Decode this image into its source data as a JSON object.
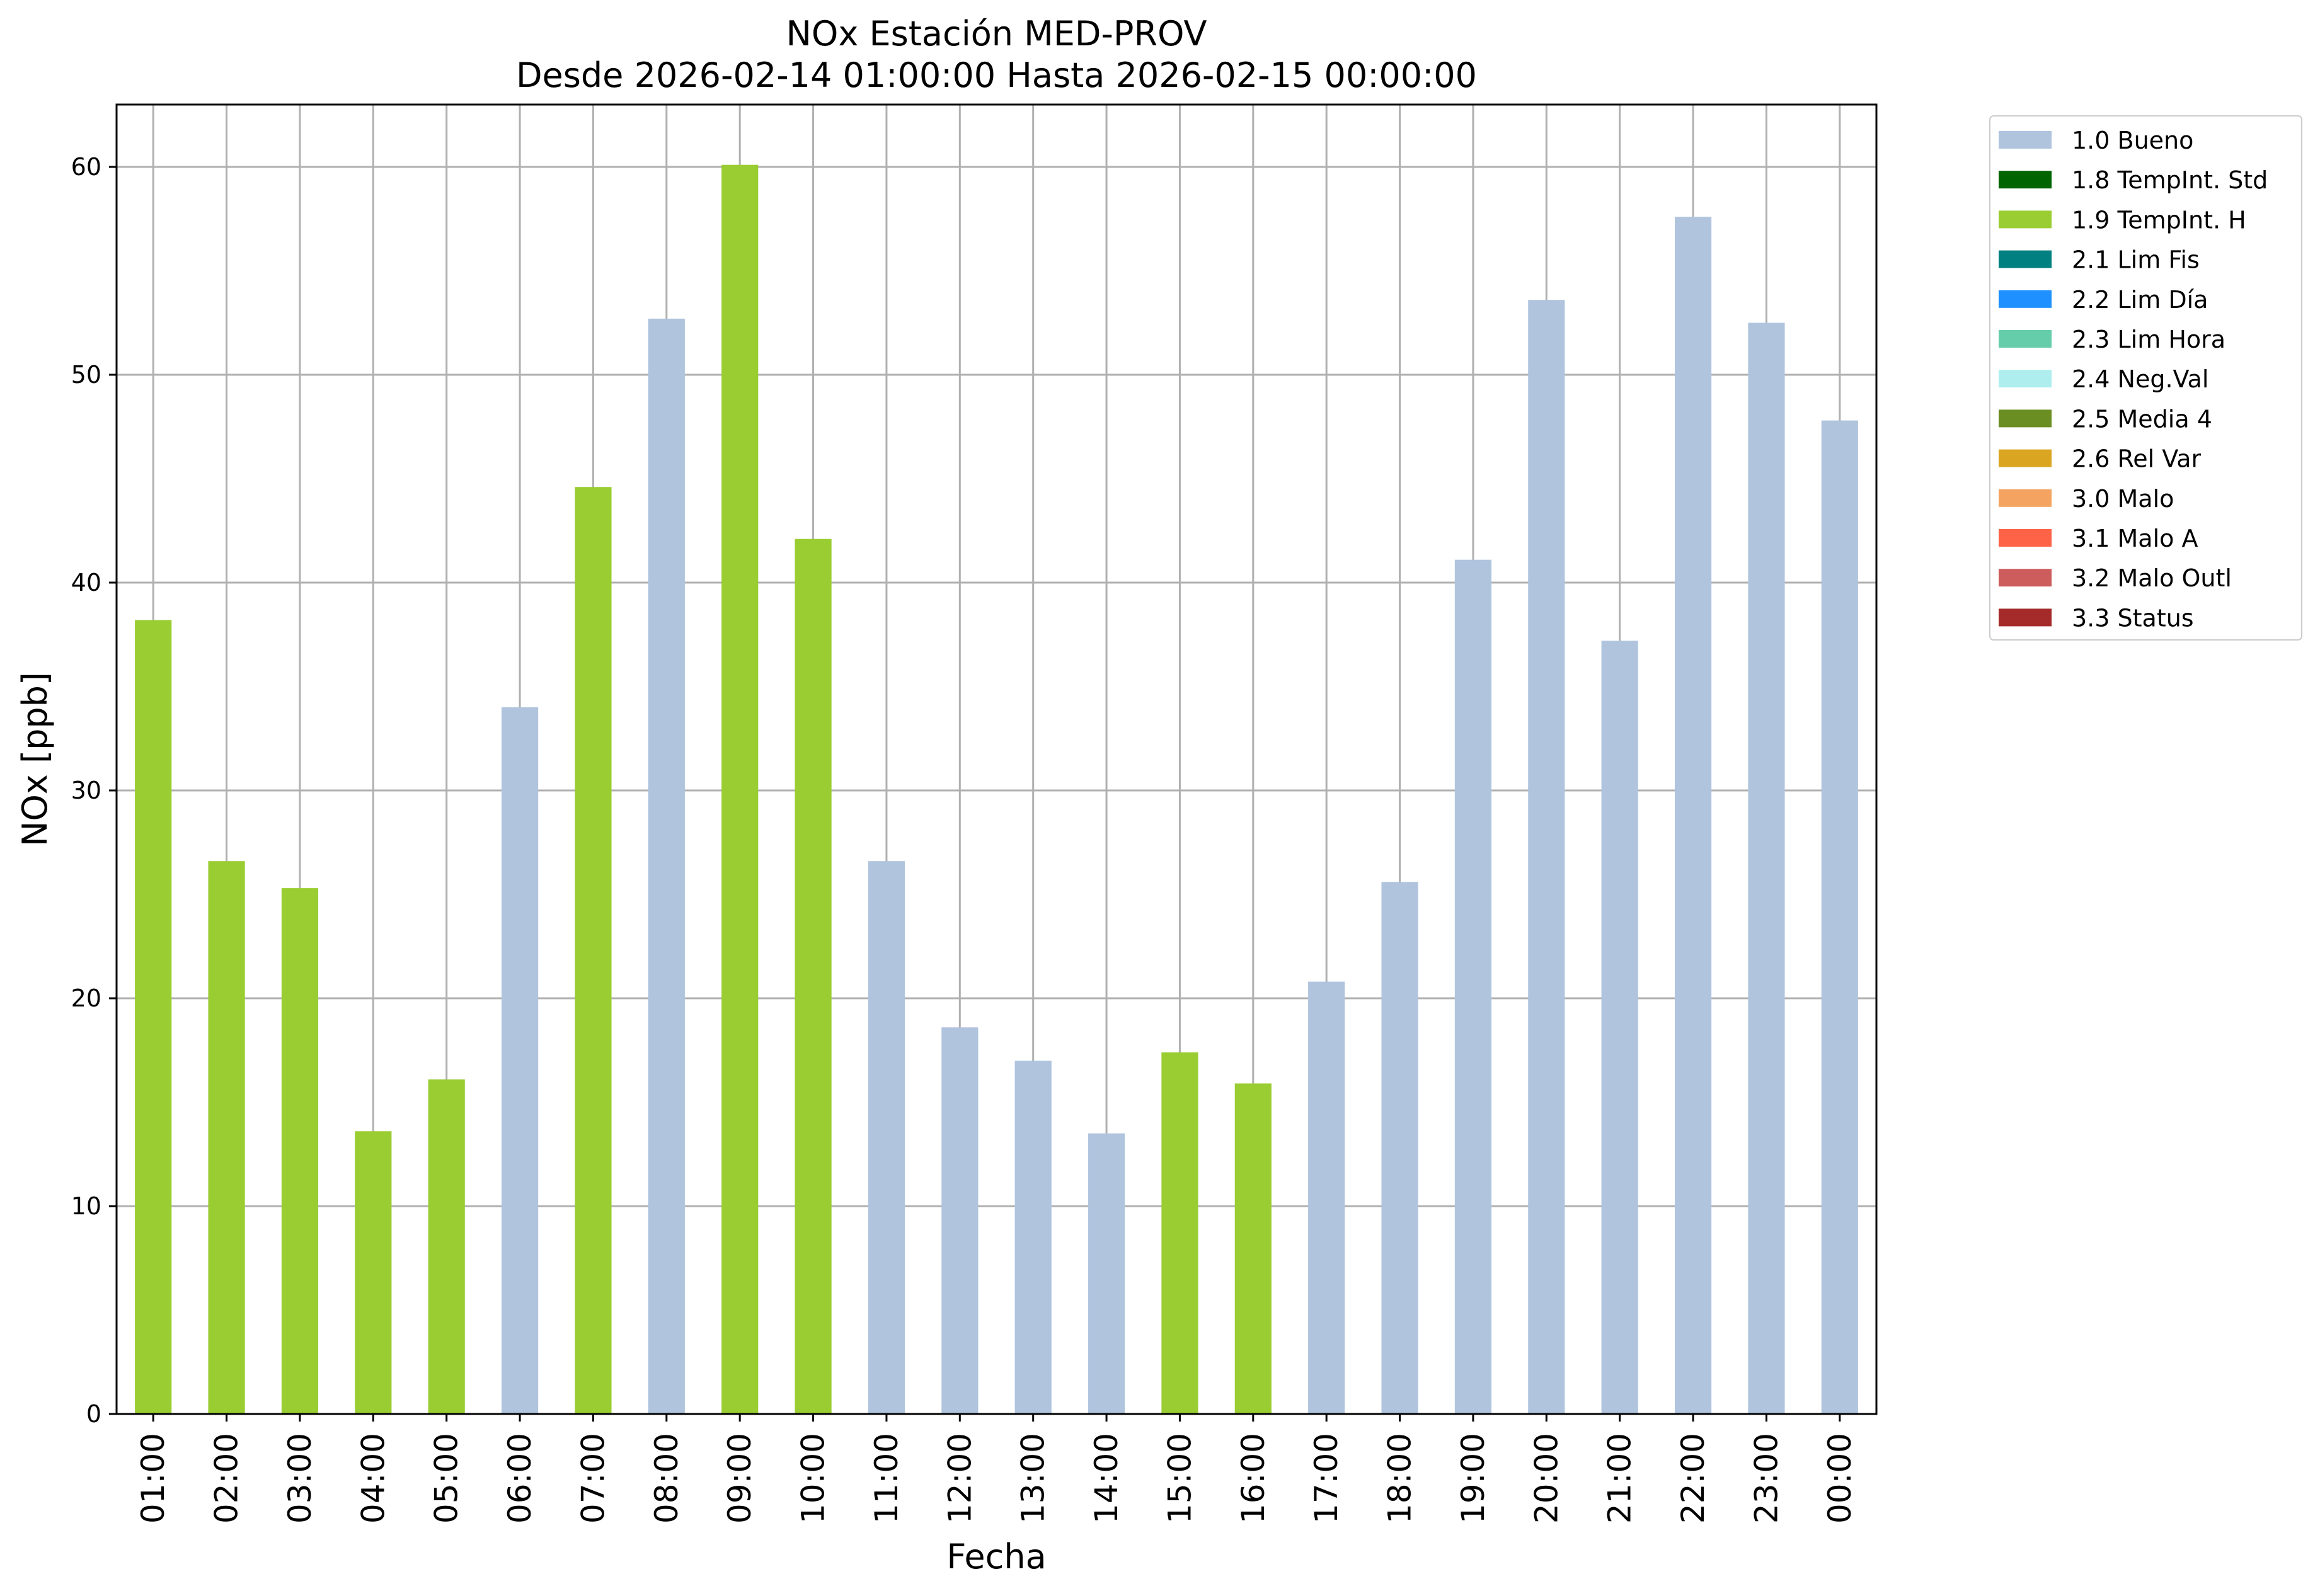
{
  "colors": {
    "bueno": "#b0c4de",
    "tempint_h": "#9acd32",
    "grid": "#b0b0b0",
    "axes": "#000000"
  },
  "chart_data": {
    "type": "bar",
    "title_line1": "NOx Estación MED-PROV",
    "title_line2": "Desde 2026-02-14 01:00:00 Hasta 2026-02-15 00:00:00",
    "xlabel": "Fecha",
    "ylabel": "NOx [ppb]",
    "ylim": [
      0,
      63
    ],
    "yticks": [
      0,
      10,
      20,
      30,
      40,
      50,
      60
    ],
    "grid": true,
    "legend_position": "outside-top-right",
    "categories": [
      "01:00",
      "02:00",
      "03:00",
      "04:00",
      "05:00",
      "06:00",
      "07:00",
      "08:00",
      "09:00",
      "10:00",
      "11:00",
      "12:00",
      "13:00",
      "14:00",
      "15:00",
      "16:00",
      "17:00",
      "18:00",
      "19:00",
      "20:00",
      "21:00",
      "22:00",
      "23:00",
      "00:00"
    ],
    "values": [
      38.2,
      26.6,
      25.3,
      13.6,
      16.1,
      34.0,
      44.6,
      52.7,
      60.1,
      42.1,
      26.6,
      18.6,
      17.0,
      13.5,
      17.4,
      15.9,
      20.8,
      25.6,
      41.1,
      53.6,
      37.2,
      57.6,
      52.5,
      47.8
    ],
    "flags": [
      "1.9 TempInt. H",
      "1.9 TempInt. H",
      "1.9 TempInt. H",
      "1.9 TempInt. H",
      "1.9 TempInt. H",
      "1.0 Bueno",
      "1.9 TempInt. H",
      "1.0 Bueno",
      "1.9 TempInt. H",
      "1.9 TempInt. H",
      "1.0 Bueno",
      "1.0 Bueno",
      "1.0 Bueno",
      "1.0 Bueno",
      "1.9 TempInt. H",
      "1.9 TempInt. H",
      "1.0 Bueno",
      "1.0 Bueno",
      "1.0 Bueno",
      "1.0 Bueno",
      "1.0 Bueno",
      "1.0 Bueno",
      "1.0 Bueno",
      "1.0 Bueno"
    ],
    "legend": [
      {
        "label": "1.0 Bueno",
        "color": "#b0c4de"
      },
      {
        "label": "1.8 TempInt. Std",
        "color": "#006400"
      },
      {
        "label": "1.9 TempInt. H",
        "color": "#9acd32"
      },
      {
        "label": "2.1 Lim Fis",
        "color": "#008080"
      },
      {
        "label": "2.2 Lim Día",
        "color": "#1e90ff"
      },
      {
        "label": "2.3 Lim Hora",
        "color": "#66cdaa"
      },
      {
        "label": "2.4 Neg.Val",
        "color": "#afeeee"
      },
      {
        "label": "2.5 Media 4",
        "color": "#6b8e23"
      },
      {
        "label": "2.6 Rel Var",
        "color": "#daa520"
      },
      {
        "label": "3.0 Malo",
        "color": "#f4a460"
      },
      {
        "label": "3.1 Malo A",
        "color": "#ff6347"
      },
      {
        "label": "3.2 Malo Outl",
        "color": "#cd5c5c"
      },
      {
        "label": "3.3 Status",
        "color": "#a52a2a"
      }
    ]
  }
}
